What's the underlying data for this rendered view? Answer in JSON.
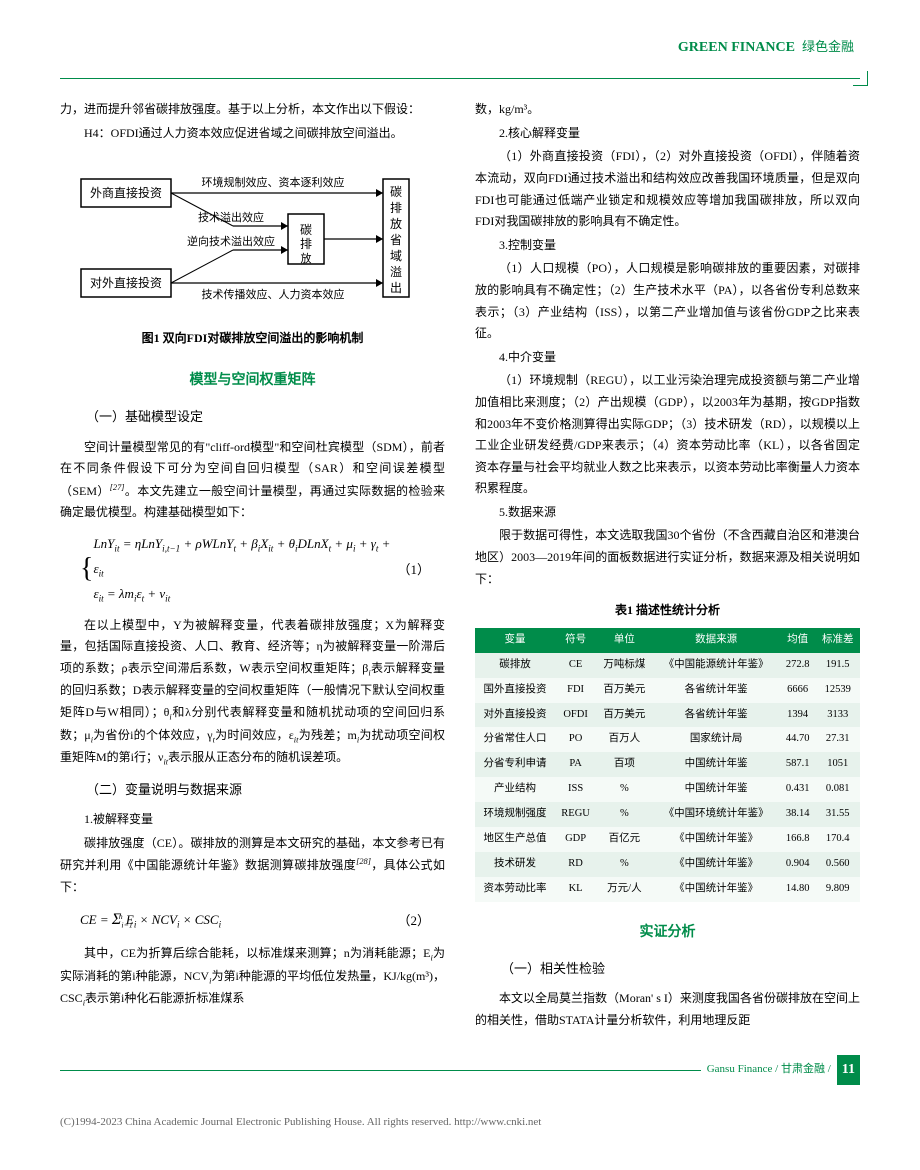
{
  "header": {
    "en": "GREEN FINANCE",
    "zh": "绿色金融"
  },
  "left": {
    "p1": "力，进而提升邻省碳排放强度。基于以上分析，本文作出以下假设：",
    "p2": "H4：OFDI通过人力资本效应促进省域之间碳排放空间溢出。",
    "diagram": {
      "b1": "外商直接投资",
      "b2": "对外直接投资",
      "b3": "碳排放",
      "b4": "碳排放省域溢出",
      "l1": "环境规制效应、资本逐利效应",
      "l2": "技术溢出效应",
      "l3": "逆向技术溢出效应",
      "l4": "技术传播效应、人力资本效应",
      "caption": "图1  双向FDI对碳排放空间溢出的影响机制"
    },
    "section1": "模型与空间权重矩阵",
    "sub1": "（一）基础模型设定",
    "p3": "空间计量模型常见的有\"cliff-ord模型\"和空间杜宾模型（SDM），前者在不同条件假设下可分为空间自回归模型（SAR）和空间误差模型（SEM）",
    "p3ref": "[27]",
    "p3b": "。本文先建立一般空间计量模型，再通过实际数据的检验来确定最优模型。构建基础模型如下：",
    "formula1_line1": "LnY_{it} = ηLnY_{i,t-1} + ρWLnY_t + β_iX_{it} + θ_iDLnX_t + μ_i + γ_t + ε_{it}",
    "formula1_line2": "ε_{it} = λm_iε_t + ν_{it}",
    "formula1_num": "（1）",
    "p4": "在以上模型中，Y为被解释变量，代表着碳排放强度；X为解释变量，包括国际直接投资、人口、教育、经济等；η为被解释变量一阶滞后项的系数；ρ表示空间滞后系数，W表示空间权重矩阵；β_i表示解释变量的回归系数；D表示解释变量的空间权重矩阵（一般情况下默认空间权重矩阵D与W相同）；θ_i和λ分别代表解释变量和随机扰动项的空间回归系数；μ_i为省份i的个体效应，γ_t为时间效应，ε_{it}为残差；m_i为扰动项空间权重矩阵M的第i行；ν_{it}表示服从正态分布的随机误差项。",
    "sub2": "（二）变量说明与数据来源",
    "subsub1": "1.被解释变量",
    "p5": "碳排放强度（CE）。碳排放的测算是本文研究的基础，本文参考已有研究并利用《中国能源统计年鉴》数据测算碳排放强度",
    "p5ref": "[28]",
    "p5b": "，具体公式如下：",
    "formula2": "CE = Σ E_i × NCV_i × CSC_i",
    "formula2_num": "（2）",
    "p6": "其中，CE为折算后综合能耗，以标准煤来测算；n为消耗能源；E_i为实际消耗的第i种能源，NCV_i为第i种能源的平均低位发热量，KJ/kg(m³)，CSC_i表示第i种化石能源折标准煤系"
  },
  "right": {
    "p1": "数，kg/m³。",
    "subsub2": "2.核心解释变量",
    "p2": "（1）外商直接投资（FDI），（2）对外直接投资（OFDI），伴随着资本流动，双向FDI通过技术溢出和结构效应改善我国环境质量，但是双向FDI也可能通过低端产业锁定和规模效应等增加我国碳排放，所以双向FDI对我国碳排放的影响具有不确定性。",
    "subsub3": "3.控制变量",
    "p3": "（1）人口规模（PO），人口规模是影响碳排放的重要因素，对碳排放的影响具有不确定性；（2）生产技术水平（PA），以各省份专利总数来表示；（3）产业结构（ISS），以第二产业增加值与该省份GDP之比来表征。",
    "subsub4": "4.中介变量",
    "p4": "（1）环境规制（REGU），以工业污染治理完成投资额与第二产业增加值相比来测度；（2）产出规模（GDP），以2003年为基期，按GDP指数和2003年不变价格测算得出实际GDP；（3）技术研发（RD），以规模以上工业企业研发经费/GDP来表示；（4）资本劳动比率（KL），以各省固定资本存量与社会平均就业人数之比来表示，以资本劳动比率衡量人力资本积累程度。",
    "subsub5": "5.数据来源",
    "p5": "限于数据可得性，本文选取我国30个省份（不含西藏自治区和港澳台地区）2003—2019年间的面板数据进行实证分析，数据来源及相关说明如下：",
    "table_title": "表1  描述性统计分析",
    "table": {
      "cols": [
        "变量",
        "符号",
        "单位",
        "数据来源",
        "均值",
        "标准差"
      ],
      "rows": [
        [
          "碳排放",
          "CE",
          "万吨标煤",
          "《中国能源统计年鉴》",
          "272.8",
          "191.5"
        ],
        [
          "国外直接投资",
          "FDI",
          "百万美元",
          "各省统计年鉴",
          "6666",
          "12539"
        ],
        [
          "对外直接投资",
          "OFDI",
          "百万美元",
          "各省统计年鉴",
          "1394",
          "3133"
        ],
        [
          "分省常住人口",
          "PO",
          "百万人",
          "国家统计局",
          "44.70",
          "27.31"
        ],
        [
          "分省专利申请",
          "PA",
          "百项",
          "中国统计年鉴",
          "587.1",
          "1051"
        ],
        [
          "产业结构",
          "ISS",
          "%",
          "中国统计年鉴",
          "0.431",
          "0.081"
        ],
        [
          "环境规制强度",
          "REGU",
          "%",
          "《中国环境统计年鉴》",
          "38.14",
          "31.55"
        ],
        [
          "地区生产总值",
          "GDP",
          "百亿元",
          "《中国统计年鉴》",
          "166.8",
          "170.4"
        ],
        [
          "技术研发",
          "RD",
          "%",
          "《中国统计年鉴》",
          "0.904",
          "0.560"
        ],
        [
          "资本劳动比率",
          "KL",
          "万元/人",
          "《中国统计年鉴》",
          "14.80",
          "9.809"
        ]
      ]
    },
    "section2": "实证分析",
    "sub3": "（一）相关性检验",
    "p6": "本文以全局莫兰指数（Moran' s I）来测度我国各省份碳排放在空间上的相关性，借助STATA计量分析软件，利用地理反距"
  },
  "footer": {
    "text": "Gansu Finance / 甘肃金融 /",
    "page": "11"
  },
  "copyright": "(C)1994-2023 China Academic Journal Electronic Publishing House. All rights reserved.    http://www.cnki.net"
}
